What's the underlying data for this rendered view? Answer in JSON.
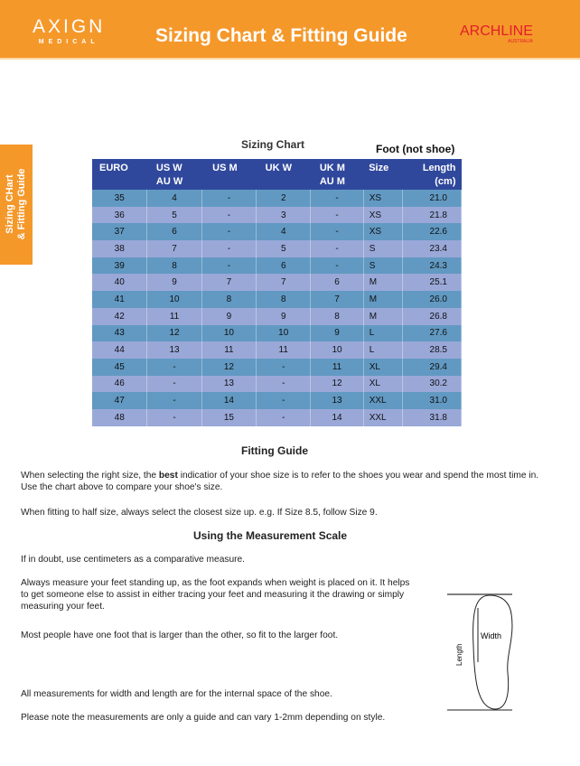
{
  "header": {
    "logo_main": "AXIGN",
    "logo_sub": "MEDICAL",
    "title": "Sizing Chart & Fitting Guide",
    "brand": "ARCHLINE",
    "brand_sub": "AUSTRALIA"
  },
  "side_tab": {
    "line1": "Sizing CHart",
    "line2": "& Fitting Guide"
  },
  "chart": {
    "title": "Sizing Chart",
    "note": "Foot (not shoe)",
    "columns": [
      [
        "EURO",
        ""
      ],
      [
        "US W",
        "AU W"
      ],
      [
        "US M",
        ""
      ],
      [
        "UK W",
        ""
      ],
      [
        "UK M",
        "AU M"
      ],
      [
        "Size",
        ""
      ],
      [
        "Length",
        "(cm)"
      ]
    ],
    "rows": [
      [
        "35",
        "4",
        "-",
        "2",
        "-",
        "XS",
        "21.0"
      ],
      [
        "36",
        "5",
        "-",
        "3",
        "-",
        "XS",
        "21.8"
      ],
      [
        "37",
        "6",
        "-",
        "4",
        "-",
        "XS",
        "22.6"
      ],
      [
        "38",
        "7",
        "-",
        "5",
        "-",
        "S",
        "23.4"
      ],
      [
        "39",
        "8",
        "-",
        "6",
        "-",
        "S",
        "24.3"
      ],
      [
        "40",
        "9",
        "7",
        "7",
        "6",
        "M",
        "25.1"
      ],
      [
        "41",
        "10",
        "8",
        "8",
        "7",
        "M",
        "26.0"
      ],
      [
        "42",
        "11",
        "9",
        "9",
        "8",
        "M",
        "26.8"
      ],
      [
        "43",
        "12",
        "10",
        "10",
        "9",
        "L",
        "27.6"
      ],
      [
        "44",
        "13",
        "11",
        "11",
        "10",
        "L",
        "28.5"
      ],
      [
        "45",
        "-",
        "12",
        "-",
        "11",
        "XL",
        "29.4"
      ],
      [
        "46",
        "-",
        "13",
        "-",
        "12",
        "XL",
        "30.2"
      ],
      [
        "47",
        "-",
        "14",
        "-",
        "13",
        "XXL",
        "31.0"
      ],
      [
        "48",
        "-",
        "15",
        "-",
        "14",
        "XXL",
        "31.8"
      ]
    ]
  },
  "fitting": {
    "title": "Fitting Guide",
    "p1a": "When selecting the right size, the ",
    "p1b": "best",
    "p1c": " indicatior of your shoe size is to refer to the shoes you wear and spend the most time in. Use the chart above to compare your shoe's size.",
    "p2": "When fitting to half size, always select the closest size up. e.g. If Size 8.5, follow Size 9."
  },
  "measure": {
    "title": "Using the Measurement Scale",
    "p1": "If in doubt, use centimeters as a comparative measure.",
    "p2": "Always measure your feet standing up, as the foot expands when weight is placed on it. It helps to get someone else to assist in either tracing your feet and measuring it the drawing or simply measuring your feet.",
    "p3": "Most people have one foot that is larger than the other, so fit to the larger foot.",
    "p4": "All measurements for width and length are for the internal space of the shoe.",
    "p5": "Please note the measurements are only a guide and can vary 1-2mm depending on style.",
    "diagram_length": "Length",
    "diagram_width": "Width"
  }
}
